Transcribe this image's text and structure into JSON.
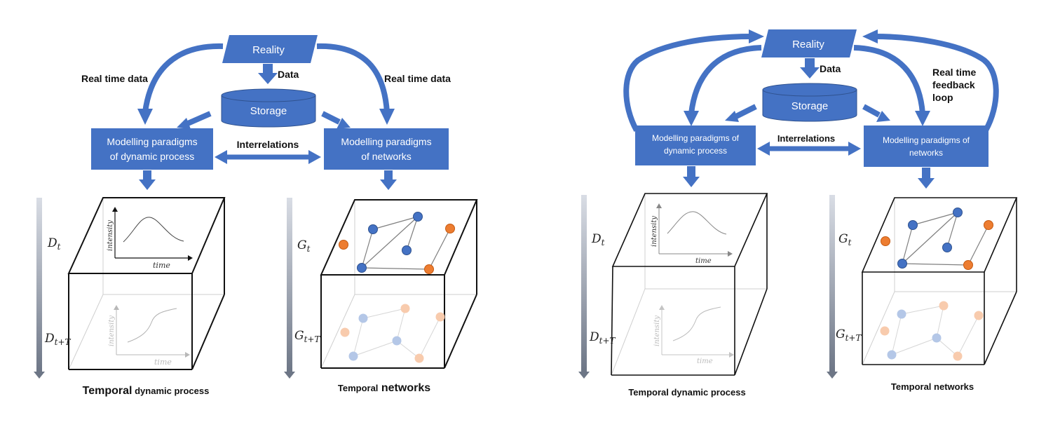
{
  "colors": {
    "blue": "#4472c4",
    "dark_blue": "#2f528f",
    "orange": "#ed7d31",
    "faint_blue": "#b4c7e7",
    "faint_orange": "#f8cbad",
    "edge": "#7f7f7f"
  },
  "left": {
    "reality": "Reality",
    "data": "Data",
    "storage": "Storage",
    "rt_left": "Real time data",
    "rt_right": "Real time data",
    "model_dyn": [
      "Modelling paradigms",
      "of dynamic process"
    ],
    "model_net": [
      "Modelling paradigms",
      "of networks"
    ],
    "interrelations": "Interrelations",
    "cap_dyn_a": "Temporal",
    "cap_dyn_b": " dynamic process",
    "cap_net_a": "Temporal",
    "cap_net_b": " networks"
  },
  "right": {
    "reality": "Reality",
    "data": "Data",
    "storage": "Storage",
    "feedback": [
      "Real time",
      "feedback",
      "loop"
    ],
    "model_dyn": [
      "Modelling paradigms of",
      "dynamic process"
    ],
    "model_net": [
      "Modelling paradigms of",
      "networks"
    ],
    "interrelations": "Interrelations",
    "cap_dyn": "Temporal dynamic process",
    "cap_net": "Temporal networks"
  },
  "cube": {
    "intensity": "intensity",
    "time": "time",
    "D": "D",
    "G": "G",
    "sub_t": "t",
    "sub_tT": "t+T"
  }
}
